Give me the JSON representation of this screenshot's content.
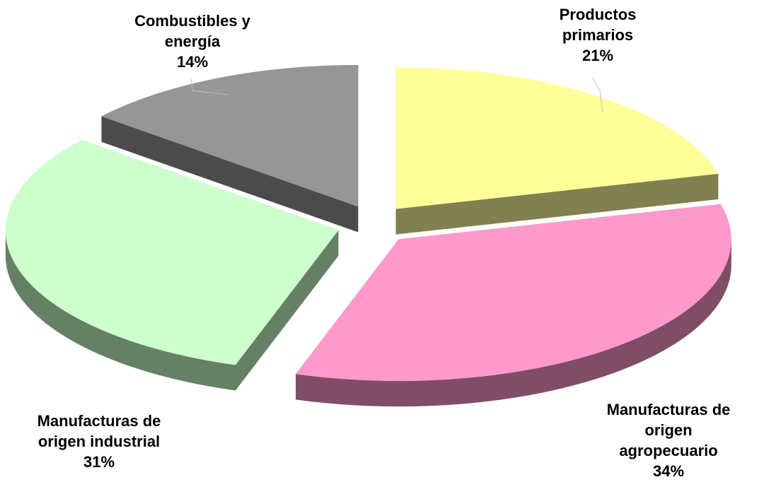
{
  "chart_data": {
    "type": "pie",
    "title": "",
    "slices": [
      {
        "name_lines": [
          "Productos",
          "primarios"
        ],
        "value": 21,
        "label": "21%",
        "top_color": "#ffff99",
        "side_color": "#808050"
      },
      {
        "name_lines": [
          "Manufacturas de",
          "origen",
          "agropecuario"
        ],
        "value": 34,
        "label": "34%",
        "top_color": "#ff99cc",
        "side_color": "#804d66"
      },
      {
        "name_lines": [
          "Manufacturas de",
          "origen industrial"
        ],
        "value": 31,
        "label": "31%",
        "top_color": "#ccffcc",
        "side_color": "#668066"
      },
      {
        "name_lines": [
          "Combustibles y",
          "energía"
        ],
        "value": 14,
        "label": "14%",
        "top_color": "#969696",
        "side_color": "#4b4b4b"
      }
    ],
    "legend": "none",
    "labels_position": "outside"
  }
}
